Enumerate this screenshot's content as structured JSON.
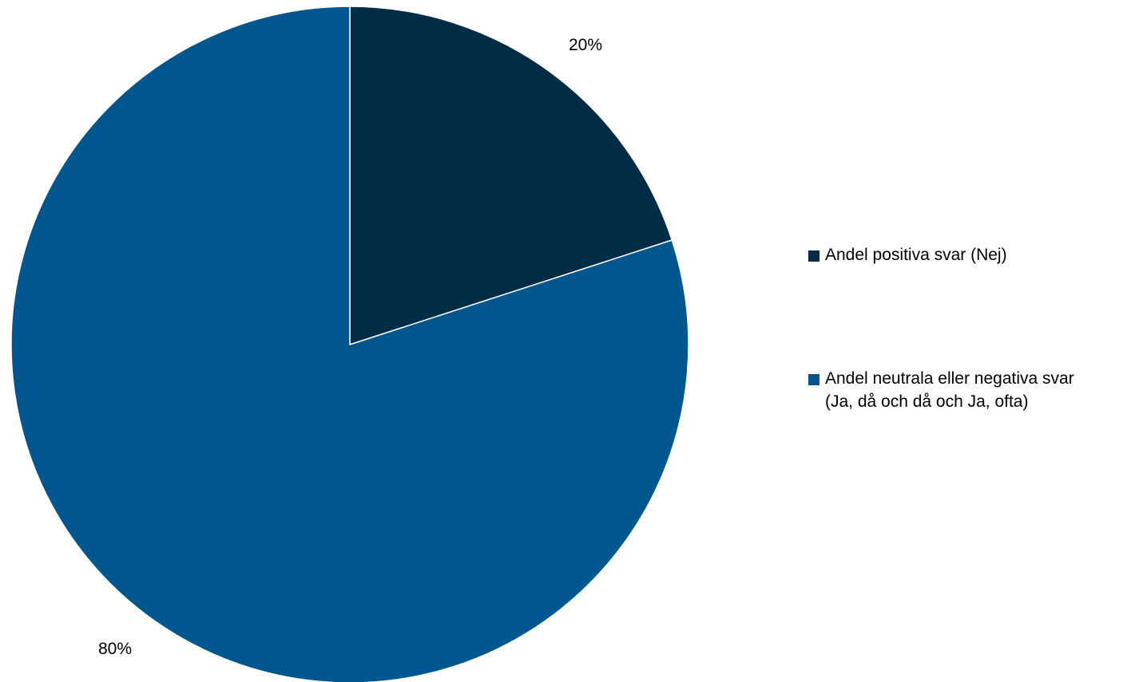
{
  "chart_data": {
    "type": "pie",
    "slices": [
      {
        "label_line1": "Andel positiva svar (Nej)",
        "label_line2": "",
        "value": 20,
        "value_label": "20%",
        "color": "#002c46"
      },
      {
        "label_line1": "Andel neutrala eller negativa svar",
        "label_line2": "(Ja, då och då och Ja, ofta)",
        "value": 80,
        "value_label": "80%",
        "color": "#00568f"
      }
    ],
    "start_angle_deg": 0,
    "direction": "clockwise",
    "legend_position": "right"
  }
}
